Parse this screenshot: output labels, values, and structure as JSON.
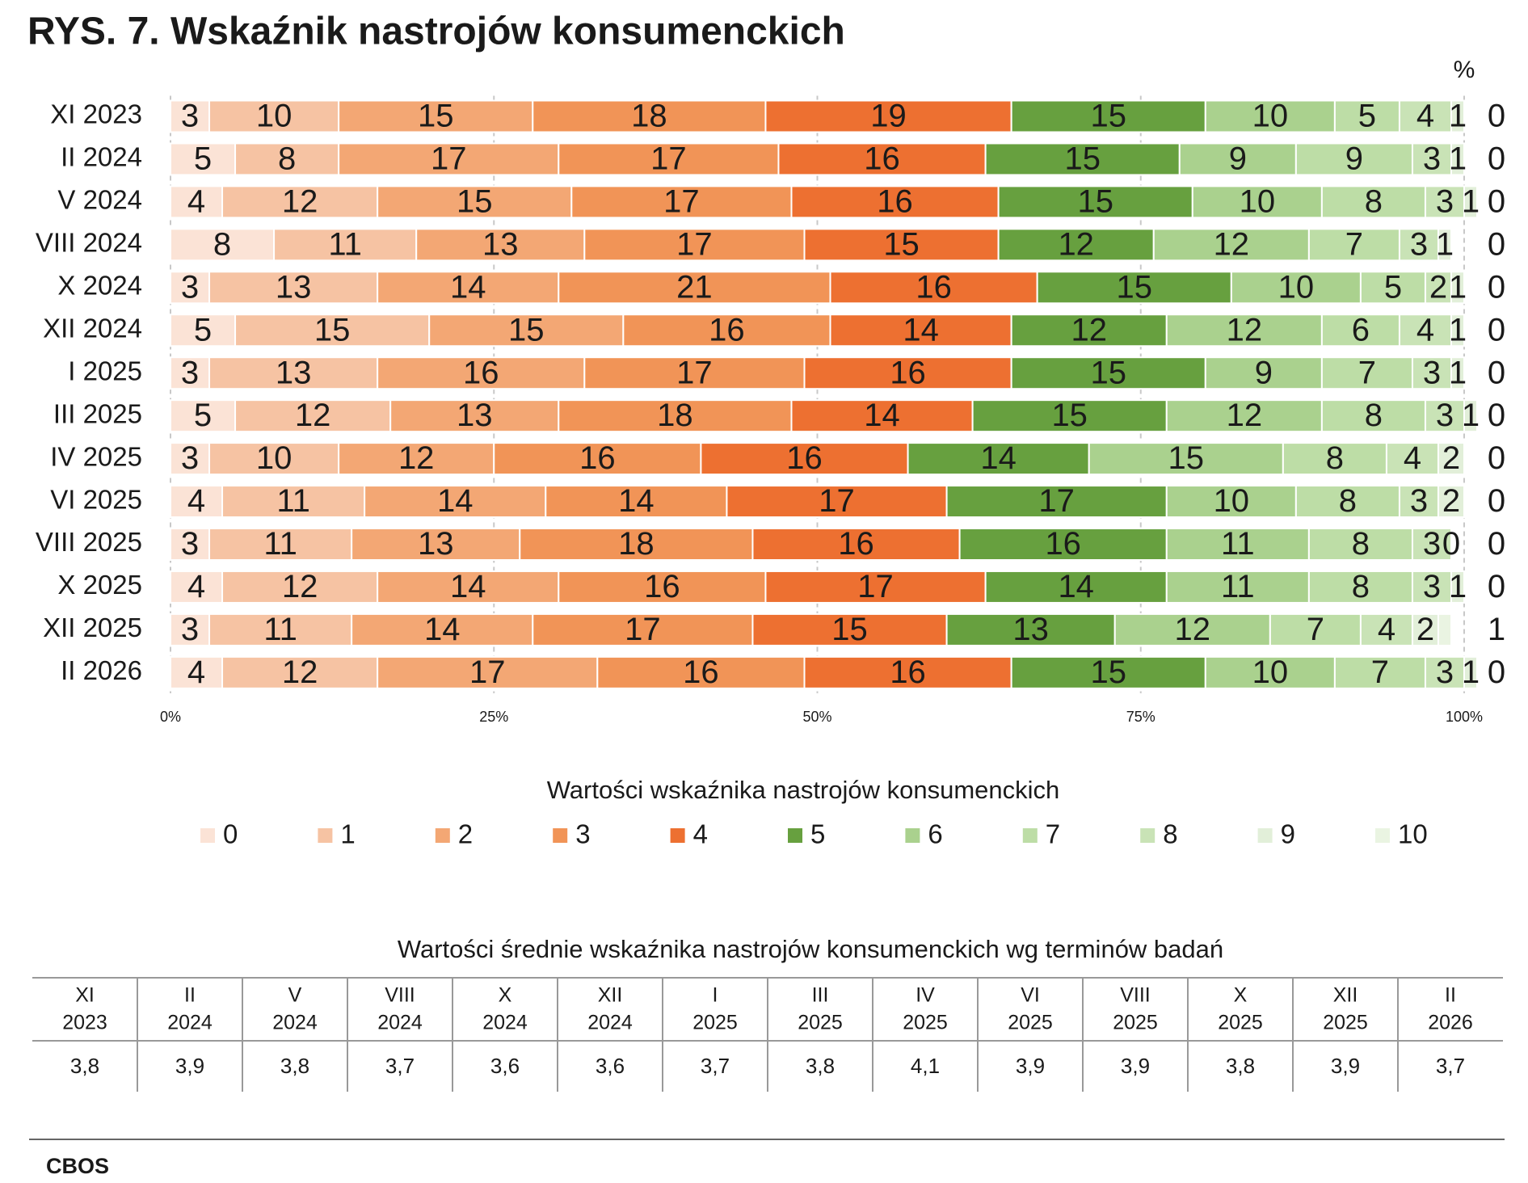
{
  "chart_data": {
    "type": "stacked-bar-horizontal",
    "title": "RYS. 7. Wskaźnik nastrojów konsumenckich",
    "unit_label": "%",
    "categories": [
      "XI 2023",
      "II 2024",
      "V 2024",
      "VIII 2024",
      "X 2024",
      "XII 2024",
      "I 2025",
      "III 2025",
      "IV 2025",
      "VI 2025",
      "VIII 2025",
      "X 2025",
      "XII 2025",
      "II 2026"
    ],
    "xlim": [
      0,
      100
    ],
    "xticks": [
      {
        "value": 0,
        "label": "0%"
      },
      {
        "value": 25,
        "label": "25%"
      },
      {
        "value": 50,
        "label": "50%"
      },
      {
        "value": 75,
        "label": "75%"
      },
      {
        "value": 100,
        "label": "100%"
      }
    ],
    "grid": true,
    "legend_title": "Wartości wskaźnika nastrojów konsumenckich",
    "series": [
      {
        "name": "0",
        "color": "#fbe3d6",
        "values": [
          3,
          5,
          4,
          8,
          3,
          5,
          3,
          5,
          3,
          4,
          3,
          4,
          3,
          4
        ]
      },
      {
        "name": "1",
        "color": "#f6c3a3",
        "values": [
          10,
          8,
          12,
          11,
          13,
          15,
          13,
          12,
          10,
          11,
          11,
          12,
          11,
          12
        ]
      },
      {
        "name": "2",
        "color": "#f3a774",
        "values": [
          15,
          17,
          15,
          13,
          14,
          15,
          16,
          13,
          12,
          14,
          13,
          14,
          14,
          17
        ]
      },
      {
        "name": "3",
        "color": "#f19457",
        "values": [
          18,
          17,
          17,
          17,
          21,
          16,
          17,
          18,
          16,
          14,
          18,
          16,
          17,
          16
        ]
      },
      {
        "name": "4",
        "color": "#ed7031",
        "values": [
          19,
          16,
          16,
          15,
          16,
          14,
          16,
          14,
          16,
          17,
          16,
          17,
          15,
          16
        ]
      },
      {
        "name": "5",
        "color": "#67a03f",
        "values": [
          15,
          15,
          15,
          12,
          15,
          12,
          15,
          15,
          14,
          17,
          16,
          14,
          13,
          15
        ]
      },
      {
        "name": "6",
        "color": "#aad18e",
        "values": [
          10,
          9,
          10,
          12,
          10,
          12,
          9,
          12,
          15,
          10,
          11,
          11,
          12,
          10
        ]
      },
      {
        "name": "7",
        "color": "#bddda6",
        "values": [
          5,
          9,
          8,
          7,
          5,
          6,
          7,
          8,
          8,
          8,
          8,
          8,
          7,
          7
        ]
      },
      {
        "name": "8",
        "color": "#c9e3b6",
        "values": [
          4,
          3,
          3,
          3,
          2,
          4,
          3,
          3,
          4,
          3,
          3,
          3,
          4,
          3
        ]
      },
      {
        "name": "9",
        "color": "#e2efd9",
        "values": [
          1,
          1,
          1,
          1,
          1,
          1,
          1,
          1,
          2,
          2,
          0,
          1,
          2,
          1
        ]
      },
      {
        "name": "10",
        "color": "#eaf4e2",
        "values": [
          0,
          0,
          0,
          0,
          0,
          0,
          0,
          0,
          0,
          0,
          0,
          0,
          1,
          0
        ]
      }
    ]
  },
  "table": {
    "title": "Wartości średnie wskaźnika nastrojów konsumenckich wg terminów badań",
    "header": [
      [
        "XI",
        "2023"
      ],
      [
        "II",
        "2024"
      ],
      [
        "V",
        "2024"
      ],
      [
        "VIII",
        "2024"
      ],
      [
        "X",
        "2024"
      ],
      [
        "XII",
        "2024"
      ],
      [
        "I",
        "2025"
      ],
      [
        "III",
        "2025"
      ],
      [
        "IV",
        "2025"
      ],
      [
        "VI",
        "2025"
      ],
      [
        "VIII",
        "2025"
      ],
      [
        "X",
        "2025"
      ],
      [
        "XII",
        "2025"
      ],
      [
        "II",
        "2026"
      ]
    ],
    "values": [
      "3,8",
      "3,9",
      "3,8",
      "3,7",
      "3,6",
      "3,6",
      "3,7",
      "3,8",
      "4,1",
      "3,9",
      "3,9",
      "3,8",
      "3,9",
      "3,7"
    ]
  },
  "footer": "CBOS"
}
